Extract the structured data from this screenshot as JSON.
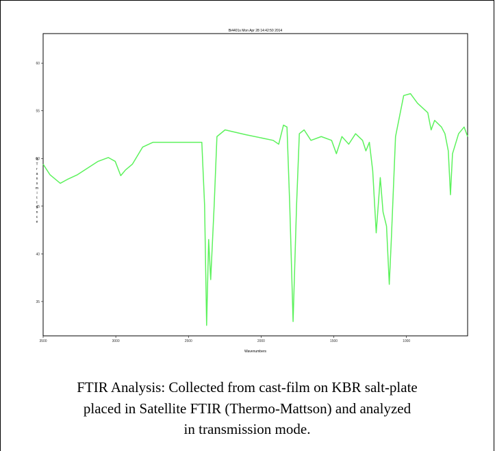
{
  "chart_data": {
    "type": "line",
    "title": "Bi4401s  Mon Apr 28 14:42:50 2014",
    "x_label": "Wavenumbers",
    "y_label": "%Transmittance",
    "x": [
      3500,
      3453,
      3382,
      3334,
      3264,
      3193,
      3122,
      3051,
      3004,
      2966,
      2933,
      2886,
      2815,
      2744,
      2626,
      2484,
      2408,
      2389,
      2375,
      2361,
      2347,
      2323,
      2304,
      2248,
      2106,
      1917,
      1879,
      1846,
      1822,
      1803,
      1780,
      1756,
      1737,
      1704,
      1657,
      1586,
      1515,
      1482,
      1444,
      1397,
      1350,
      1302,
      1279,
      1255,
      1232,
      1208,
      1194,
      1180,
      1161,
      1137,
      1118,
      1104,
      1075,
      1019,
      972,
      924,
      853,
      830,
      806,
      759,
      735,
      712,
      697,
      683,
      641,
      603,
      579
    ],
    "values": [
      49.4,
      48.3,
      47.4,
      47.8,
      48.3,
      49.0,
      49.7,
      50.1,
      49.7,
      48.2,
      48.8,
      49.4,
      51.2,
      51.7,
      51.7,
      51.7,
      51.7,
      45.1,
      32.5,
      41.5,
      37.3,
      45.1,
      52.3,
      53.0,
      52.5,
      51.9,
      51.5,
      53.5,
      53.3,
      45.1,
      32.9,
      45.1,
      52.6,
      53.0,
      51.9,
      52.3,
      51.9,
      50.5,
      52.3,
      51.5,
      52.6,
      51.9,
      50.8,
      51.7,
      48.7,
      42.2,
      45.1,
      48.0,
      44.4,
      42.9,
      36.8,
      41.5,
      52.3,
      56.6,
      56.8,
      55.8,
      54.8,
      53.0,
      54.0,
      53.3,
      52.6,
      50.8,
      46.2,
      50.5,
      52.6,
      53.3,
      52.3
    ],
    "color": "#5cf25c",
    "xlim": [
      3500,
      579
    ],
    "xticks": [
      3500,
      3000,
      2500,
      2000,
      1500,
      1000
    ],
    "ylim": [
      31.4,
      63.1
    ],
    "yticks": [
      60,
      55,
      50,
      45,
      40,
      35
    ]
  },
  "caption": [
    "FTIR Analysis: Collected from cast-film on KBR salt-plate",
    "placed in Satellite FTIR (Thermo-Mattson) and analyzed",
    "in transmission mode."
  ]
}
